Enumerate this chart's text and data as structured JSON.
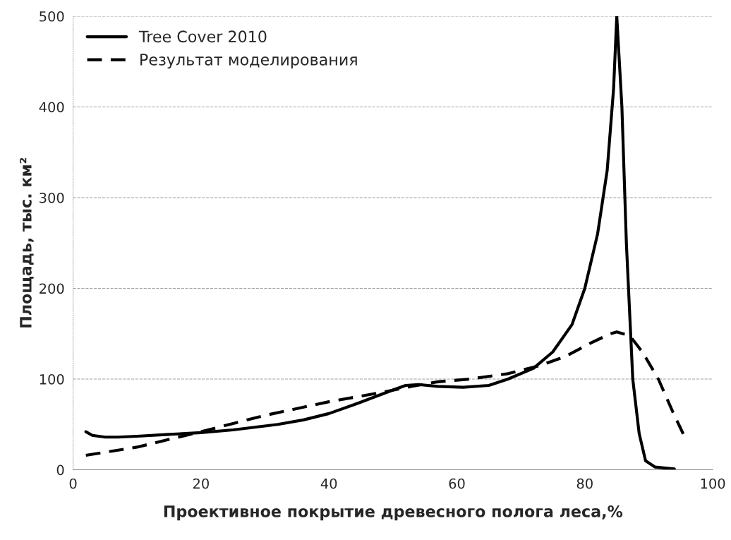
{
  "chart_data": {
    "type": "line",
    "xlabel": "Проективное покрытие древесного полога леса,%",
    "ylabel": "Площадь, тыс. км²",
    "xlim": [
      0,
      100
    ],
    "xticks": [
      0,
      20,
      40,
      60,
      80,
      100
    ],
    "ylim": [
      0,
      500
    ],
    "yticks": [
      0,
      100,
      200,
      300,
      400,
      500
    ],
    "grid": "y",
    "legend": "top left",
    "marker": "none",
    "series": [
      {
        "name": "Tree Cover 2010",
        "color": "#000000",
        "line_style": "solid",
        "x": [
          2,
          3,
          5,
          7,
          10,
          15,
          20,
          25,
          32,
          36,
          40,
          44,
          47,
          50,
          52,
          54,
          57,
          61,
          65,
          68,
          72,
          75,
          78,
          80,
          82,
          83.5,
          84.5,
          85,
          85.8,
          86.5,
          87.5,
          88.5,
          89.5,
          91,
          94
        ],
        "values": [
          42,
          38,
          36,
          36,
          37,
          39,
          41,
          44,
          50,
          55,
          62,
          72,
          80,
          88,
          93,
          94,
          92,
          91,
          93,
          100,
          112,
          130,
          160,
          200,
          260,
          330,
          420,
          500,
          400,
          250,
          100,
          40,
          10,
          3,
          1
        ]
      },
      {
        "name": "Результат моделирования",
        "color": "#000000",
        "line_style": "dashed",
        "x": [
          2,
          10,
          20,
          30,
          40,
          48,
          53,
          57,
          62,
          68,
          73,
          77,
          81,
          84,
          85,
          87,
          89,
          91.5,
          94,
          95.5
        ],
        "values": [
          16,
          25,
          42,
          60,
          75,
          85,
          92,
          97,
          100,
          106,
          115,
          125,
          140,
          150,
          152,
          148,
          130,
          100,
          60,
          38
        ]
      }
    ]
  }
}
